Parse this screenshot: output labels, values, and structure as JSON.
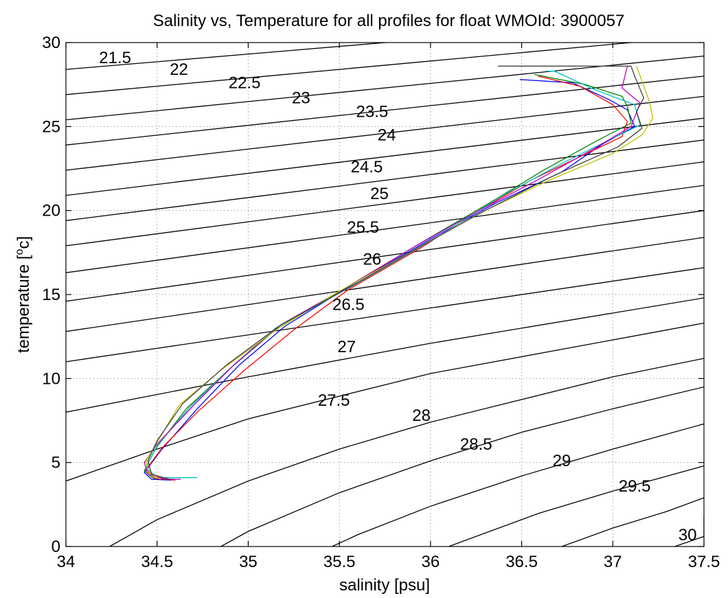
{
  "chart_data": {
    "type": "line",
    "title": "Salinity vs, Temperature for all profiles for float WMOId: 3900057",
    "xlabel": "salinity [psu]",
    "ylabel_main": "temperature [",
    "ylabel_sup": "o",
    "ylabel_end": "c]",
    "xlim": [
      34,
      37.5
    ],
    "ylim": [
      0,
      30
    ],
    "xticks": [
      "34",
      "34.5",
      "35",
      "35.5",
      "36",
      "36.5",
      "37",
      "37.5"
    ],
    "yticks": [
      "0",
      "5",
      "10",
      "15",
      "20",
      "25",
      "30"
    ],
    "grid": true,
    "density_contours": [
      {
        "label": "21.5",
        "points": [
          [
            34.0,
            28.4
          ],
          [
            37.5,
            31.6
          ]
        ],
        "label_at": [
          34.27,
          29.1
        ]
      },
      {
        "label": "22",
        "points": [
          [
            34.0,
            26.9
          ],
          [
            37.5,
            30.4
          ]
        ],
        "label_at": [
          34.62,
          28.4
        ]
      },
      {
        "label": "22.5",
        "points": [
          [
            34.0,
            25.4
          ],
          [
            37.5,
            29.2
          ]
        ],
        "label_at": [
          34.98,
          27.6
        ]
      },
      {
        "label": "23",
        "points": [
          [
            34.0,
            23.9
          ],
          [
            37.5,
            28.0
          ]
        ],
        "label_at": [
          35.29,
          26.7
        ]
      },
      {
        "label": "23.5",
        "points": [
          [
            34.0,
            22.4
          ],
          [
            37.5,
            26.8
          ]
        ],
        "label_at": [
          35.68,
          25.9
        ]
      },
      {
        "label": "24",
        "points": [
          [
            34.0,
            20.9
          ],
          [
            37.5,
            25.5
          ]
        ],
        "label_at": [
          35.76,
          24.5
        ]
      },
      {
        "label": "24.5",
        "points": [
          [
            34.0,
            19.4
          ],
          [
            37.5,
            24.2
          ]
        ],
        "label_at": [
          35.65,
          22.6
        ]
      },
      {
        "label": "25",
        "points": [
          [
            34.0,
            17.9
          ],
          [
            37.5,
            22.9
          ]
        ],
        "label_at": [
          35.72,
          21.0
        ]
      },
      {
        "label": "25.5",
        "points": [
          [
            34.0,
            16.3
          ],
          [
            37.5,
            21.5
          ]
        ],
        "label_at": [
          35.63,
          19.0
        ]
      },
      {
        "label": "26",
        "points": [
          [
            34.0,
            14.6
          ],
          [
            37.5,
            20.0
          ]
        ],
        "label_at": [
          35.68,
          17.1
        ]
      },
      {
        "label": "26.5",
        "points": [
          [
            34.0,
            12.8
          ],
          [
            37.5,
            18.4
          ]
        ],
        "label_at": [
          35.55,
          14.4
        ]
      },
      {
        "label": "27",
        "points": [
          [
            34.0,
            11.0
          ],
          [
            37.5,
            16.6
          ]
        ],
        "label_at": [
          35.54,
          11.9
        ]
      },
      {
        "label": "27.5",
        "points": [
          [
            34.0,
            8.0
          ],
          [
            35.0,
            10.1
          ],
          [
            36.0,
            12.1
          ],
          [
            37.5,
            14.8
          ]
        ],
        "label_at": [
          35.47,
          8.7
        ]
      },
      {
        "label": "28",
        "points": [
          [
            34.0,
            3.9
          ],
          [
            34.5,
            5.8
          ],
          [
            35.0,
            7.6
          ],
          [
            36.0,
            10.3
          ],
          [
            37.5,
            13.3
          ]
        ],
        "label_at": [
          35.95,
          7.8
        ]
      },
      {
        "label": "28.5",
        "points": [
          [
            34.24,
            0.0
          ],
          [
            34.5,
            1.6
          ],
          [
            35.0,
            3.9
          ],
          [
            35.5,
            5.8
          ],
          [
            36.0,
            7.4
          ],
          [
            37.0,
            10.1
          ],
          [
            37.5,
            11.2
          ]
        ],
        "label_at": [
          36.25,
          6.1
        ]
      },
      {
        "label": "29",
        "points": [
          [
            34.85,
            0.0
          ],
          [
            35.0,
            0.9
          ],
          [
            35.5,
            3.2
          ],
          [
            36.0,
            5.1
          ],
          [
            36.5,
            6.8
          ],
          [
            37.0,
            8.2
          ],
          [
            37.5,
            9.5
          ]
        ],
        "label_at": [
          36.72,
          5.1
        ]
      },
      {
        "label": "29.5",
        "points": [
          [
            35.46,
            0.0
          ],
          [
            35.6,
            0.7
          ],
          [
            36.0,
            2.4
          ],
          [
            36.5,
            4.2
          ],
          [
            37.0,
            5.8
          ],
          [
            37.5,
            7.3
          ]
        ],
        "label_at": [
          37.12,
          3.6
        ]
      },
      {
        "label": "",
        "points": [
          [
            36.1,
            0.0
          ],
          [
            36.3,
            0.8
          ],
          [
            36.6,
            2.0
          ],
          [
            37.0,
            3.3
          ],
          [
            37.5,
            4.8
          ]
        ],
        "label_at": null
      },
      {
        "label": "",
        "points": [
          [
            36.72,
            0.0
          ],
          [
            37.0,
            1.1
          ],
          [
            37.3,
            2.1
          ],
          [
            37.5,
            2.9
          ]
        ],
        "label_at": null
      },
      {
        "label": "30",
        "points": [
          [
            37.34,
            0.0
          ],
          [
            37.5,
            0.6
          ],
          [
            37.5,
            1.75
          ]
        ],
        "label_at": [
          37.41,
          0.7
        ]
      }
    ],
    "series": [
      {
        "color": "#0000ff",
        "points": [
          [
            36.49,
            27.8
          ],
          [
            36.78,
            27.6
          ],
          [
            36.98,
            26.6
          ],
          [
            37.08,
            26.0
          ],
          [
            37.12,
            25.0
          ],
          [
            36.95,
            24.0
          ],
          [
            36.72,
            22.3
          ],
          [
            36.35,
            20.4
          ],
          [
            36.0,
            18.3
          ],
          [
            35.6,
            15.8
          ],
          [
            35.2,
            13.1
          ],
          [
            34.95,
            10.8
          ],
          [
            34.72,
            8.2
          ],
          [
            34.52,
            5.7
          ],
          [
            34.43,
            4.4
          ],
          [
            34.47,
            4.0
          ],
          [
            34.58,
            3.95
          ]
        ]
      },
      {
        "color": "#008000",
        "points": [
          [
            36.57,
            28.1
          ],
          [
            36.85,
            27.5
          ],
          [
            37.05,
            26.8
          ],
          [
            37.08,
            26.2
          ],
          [
            37.1,
            25.2
          ],
          [
            36.92,
            24.2
          ],
          [
            36.62,
            22.4
          ],
          [
            36.3,
            20.3
          ],
          [
            35.95,
            18.1
          ],
          [
            35.55,
            15.5
          ],
          [
            35.15,
            12.9
          ],
          [
            34.9,
            10.6
          ],
          [
            34.66,
            8.2
          ],
          [
            34.49,
            5.8
          ],
          [
            34.43,
            4.5
          ],
          [
            34.48,
            4.05
          ],
          [
            34.6,
            4.0
          ]
        ]
      },
      {
        "color": "#ff0000",
        "points": [
          [
            36.59,
            28.0
          ],
          [
            36.82,
            27.4
          ],
          [
            37.0,
            26.3
          ],
          [
            37.08,
            25.3
          ],
          [
            37.05,
            24.4
          ],
          [
            36.8,
            23.1
          ],
          [
            36.55,
            21.8
          ],
          [
            36.25,
            19.9
          ],
          [
            35.95,
            17.8
          ],
          [
            35.55,
            15.3
          ],
          [
            35.25,
            12.9
          ],
          [
            34.98,
            10.5
          ],
          [
            34.72,
            8.0
          ],
          [
            34.53,
            5.9
          ],
          [
            34.44,
            4.6
          ],
          [
            34.49,
            4.05
          ],
          [
            34.6,
            3.95
          ]
        ]
      },
      {
        "color": "#00bfbf",
        "points": [
          [
            36.63,
            28.3
          ],
          [
            36.68,
            28.3
          ],
          [
            36.9,
            27.2
          ],
          [
            37.12,
            26.3
          ],
          [
            37.15,
            25.1
          ],
          [
            36.96,
            24.1
          ],
          [
            36.72,
            22.8
          ],
          [
            36.38,
            20.8
          ],
          [
            36.05,
            18.5
          ],
          [
            35.62,
            15.8
          ],
          [
            35.15,
            13.0
          ],
          [
            34.92,
            10.8
          ],
          [
            34.68,
            8.3
          ],
          [
            34.5,
            6.0
          ],
          [
            34.44,
            4.7
          ],
          [
            34.5,
            4.1
          ],
          [
            34.72,
            4.1
          ]
        ]
      },
      {
        "color": "#bf00bf",
        "points": [
          [
            37.08,
            28.6
          ],
          [
            37.05,
            27.3
          ],
          [
            37.15,
            26.4
          ],
          [
            37.1,
            25.0
          ],
          [
            36.9,
            23.7
          ],
          [
            36.6,
            21.9
          ],
          [
            36.25,
            19.9
          ],
          [
            35.92,
            17.9
          ],
          [
            35.55,
            15.5
          ],
          [
            35.18,
            13.2
          ],
          [
            34.93,
            10.9
          ],
          [
            34.7,
            8.4
          ],
          [
            34.5,
            6.1
          ],
          [
            34.43,
            5.0
          ],
          [
            34.45,
            4.3
          ],
          [
            34.55,
            4.0
          ],
          [
            34.63,
            4.0
          ]
        ]
      },
      {
        "color": "#bfbf00",
        "points": [
          [
            37.13,
            28.6
          ],
          [
            37.2,
            26.5
          ],
          [
            37.22,
            25.5
          ],
          [
            37.16,
            24.5
          ],
          [
            37.0,
            23.4
          ],
          [
            36.65,
            21.8
          ],
          [
            36.28,
            19.9
          ],
          [
            35.9,
            17.6
          ],
          [
            35.5,
            15.2
          ],
          [
            35.18,
            13.1
          ],
          [
            34.85,
            10.5
          ],
          [
            34.62,
            8.4
          ],
          [
            34.5,
            6.2
          ],
          [
            34.44,
            5.1
          ],
          [
            34.45,
            4.4
          ],
          [
            34.52,
            4.0
          ]
        ]
      },
      {
        "color": "#404040",
        "points": [
          [
            36.37,
            28.6
          ],
          [
            37.1,
            28.6
          ],
          [
            37.12,
            28.0
          ],
          [
            37.17,
            26.7
          ],
          [
            37.13,
            25.9
          ],
          [
            37.16,
            24.9
          ],
          [
            37.03,
            23.8
          ],
          [
            36.68,
            22.1
          ],
          [
            36.3,
            20.0
          ],
          [
            35.95,
            17.9
          ],
          [
            35.55,
            15.4
          ],
          [
            35.18,
            13.2
          ],
          [
            34.88,
            10.8
          ],
          [
            34.64,
            8.5
          ],
          [
            34.5,
            6.3
          ],
          [
            34.45,
            5.1
          ],
          [
            34.47,
            4.3
          ],
          [
            34.57,
            4.0
          ]
        ]
      }
    ]
  }
}
